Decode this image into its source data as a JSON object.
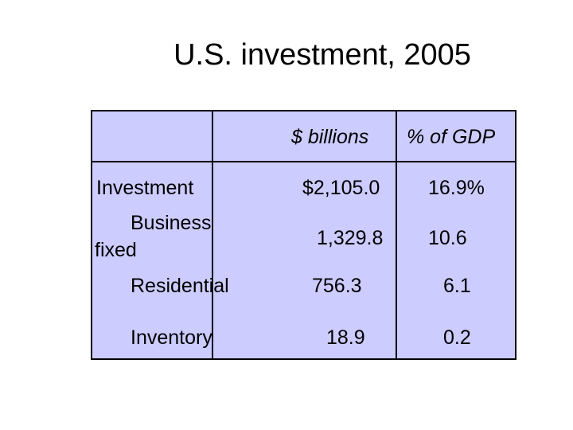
{
  "title": "U.S. investment, 2005",
  "table": {
    "headers": [
      "",
      "$ billions",
      "% of GDP"
    ],
    "rows": [
      {
        "label": "Investment",
        "billions": "$2,105.0",
        "pct": "16.9%"
      },
      {
        "label_line1": "Business",
        "label_line2": "fixed",
        "billions": "1,329.8",
        "pct": "10.6"
      },
      {
        "label": "Residential",
        "billions": "756.3",
        "pct": "6.1"
      },
      {
        "label": "Inventory",
        "billions": "18.9",
        "pct": "0.2"
      }
    ]
  },
  "colors": {
    "cell_fill": "#ccccff",
    "border": "#000000"
  }
}
